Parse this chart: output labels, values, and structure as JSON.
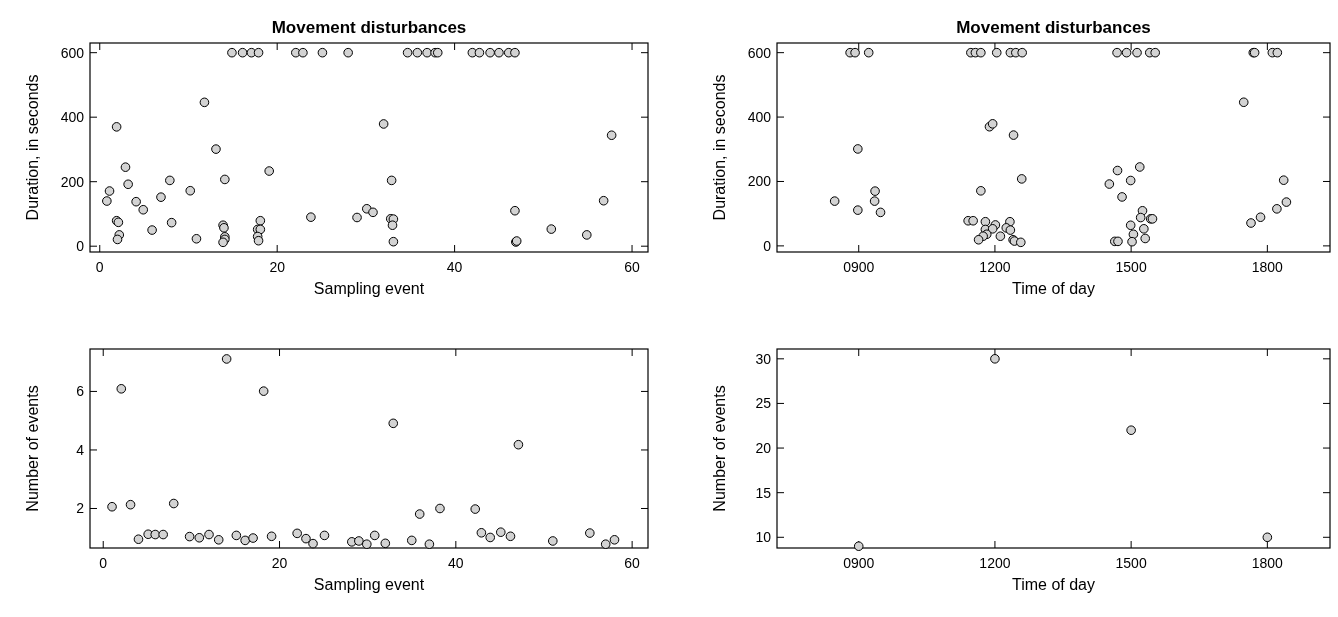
{
  "chart_data": [
    {
      "type": "scatter",
      "title": "Movement disturbances",
      "xlabel": "Sampling event",
      "ylabel": "Duration, in seconds",
      "color": "#d3d3d3",
      "marker": "circle",
      "xlim": [
        -1.1,
        61.8
      ],
      "ylim": [
        -18,
        630
      ],
      "xticks": [
        0,
        20,
        40,
        60
      ],
      "yticks": [
        0,
        200,
        400,
        600
      ],
      "x": [
        14.9,
        16.1,
        17.1,
        17.9,
        22.1,
        22.9,
        25.1,
        28.0,
        34.7,
        35.8,
        36.9,
        37.8,
        38.1,
        42.0,
        42.8,
        44.0,
        45.0,
        46.1,
        46.8,
        11.8,
        1.9,
        13.1,
        2.9,
        19.1,
        7.9,
        14.1,
        3.2,
        1.1,
        10.2,
        0.8,
        6.9,
        4.1,
        4.9,
        32.0,
        57.7,
        32.9,
        56.8,
        46.8,
        30.1,
        30.8,
        23.8,
        29.0,
        32.8,
        33.1,
        33.0,
        1.9,
        2.1,
        8.1,
        18.1,
        13.9,
        14.0,
        17.8,
        18.1,
        2.2,
        5.9,
        10.9,
        2.0,
        14.1,
        14.1,
        13.9,
        17.8,
        17.9,
        33.1,
        46.9,
        47.0,
        50.9,
        54.9
      ],
      "values": [
        600,
        600,
        600,
        600,
        600,
        600,
        600,
        600,
        600,
        600,
        600,
        600,
        600,
        600,
        600,
        600,
        600,
        600,
        600,
        446,
        370,
        301,
        245,
        233,
        204,
        207,
        192,
        171,
        172,
        140,
        152,
        138,
        113,
        379,
        344,
        204,
        141,
        110,
        116,
        105,
        90,
        89,
        85,
        84,
        65,
        79,
        74,
        73,
        79,
        65,
        57,
        52,
        52,
        35,
        50,
        23,
        21,
        29,
        21,
        12,
        30,
        17,
        14,
        13,
        16,
        53,
        35
      ]
    },
    {
      "type": "scatter",
      "title": "Movement disturbances",
      "xlabel": "Time of day",
      "ylabel": "Duration, in seconds",
      "color": "#d3d3d3",
      "marker": "circle",
      "xlim": [
        720,
        1938
      ],
      "ylim": [
        -19,
        630
      ],
      "xticks": [
        {
          "value": 900,
          "label": "0900"
        },
        1200,
        1500,
        1800
      ],
      "yticks": [
        0,
        200,
        400,
        600
      ],
      "x": [
        881,
        892,
        922,
        1147,
        1157,
        1169,
        1204,
        1234,
        1246,
        1260,
        1469,
        1490,
        1513,
        1541,
        1553,
        1769,
        1772,
        1811,
        1822,
        1748,
        1188,
        1195,
        1241,
        898,
        1259,
        1519,
        1470,
        1452,
        1499,
        1836,
        1169,
        936,
        1480,
        847,
        935,
        1842,
        898,
        948,
        1525,
        1821,
        1785,
        1764,
        1521,
        1543,
        1547,
        1141,
        1152,
        1179,
        1201,
        1233,
        1225,
        1234,
        1179,
        1195,
        1528,
        1499,
        1505,
        1182,
        1174,
        1212,
        1164,
        1240,
        1243,
        1257,
        1531,
        1464,
        1471,
        1502
      ],
      "values": [
        600,
        600,
        600,
        600,
        600,
        600,
        600,
        600,
        600,
        600,
        600,
        600,
        600,
        600,
        600,
        600,
        600,
        600,
        600,
        446,
        370,
        379,
        344,
        301,
        208,
        245,
        234,
        192,
        203,
        204,
        171,
        170,
        152,
        139,
        139,
        136,
        111,
        104,
        109,
        115,
        89,
        71,
        88,
        84,
        84,
        78,
        78,
        75,
        65,
        75,
        56,
        49,
        51,
        53,
        53,
        64,
        36,
        36,
        30,
        30,
        19,
        19,
        15,
        11,
        23,
        14,
        14,
        13
      ]
    },
    {
      "type": "scatter",
      "xlabel": "Sampling event",
      "ylabel": "Number of events",
      "color": "#d3d3d3",
      "marker": "circle",
      "xlim": [
        -1.5,
        61.8
      ],
      "ylim": [
        0.65,
        7.45
      ],
      "xticks": [
        0,
        20,
        40,
        60
      ],
      "yticks": [
        2,
        4,
        6
      ],
      "x": [
        1.0,
        2.05,
        3.1,
        4.0,
        5.1,
        5.9,
        6.8,
        8.0,
        9.8,
        10.9,
        12.0,
        13.1,
        14.0,
        15.1,
        16.1,
        17.0,
        18.2,
        19.1,
        22.0,
        23.0,
        23.8,
        25.1,
        28.2,
        29.0,
        29.9,
        30.8,
        32.0,
        32.9,
        35.0,
        35.9,
        37.0,
        38.2,
        42.2,
        42.9,
        43.9,
        45.1,
        46.2,
        47.1,
        51.0,
        55.2,
        57.0,
        58.0
      ],
      "values": [
        2.06,
        6.09,
        2.13,
        0.95,
        1.12,
        1.11,
        1.11,
        2.17,
        1.04,
        1.0,
        1.11,
        0.93,
        7.11,
        1.08,
        0.91,
        0.99,
        6.01,
        1.05,
        1.15,
        0.97,
        0.8,
        1.08,
        0.86,
        0.89,
        0.78,
        1.08,
        0.81,
        4.91,
        0.91,
        1.81,
        0.78,
        2.0,
        1.98,
        1.17,
        1.01,
        1.19,
        1.05,
        4.18,
        0.89,
        1.16,
        0.78,
        0.93
      ]
    },
    {
      "type": "scatter",
      "xlabel": "Time of day",
      "ylabel": "Number of events",
      "color": "#d3d3d3",
      "marker": "circle",
      "xlim": [
        720,
        1938
      ],
      "ylim": [
        8.8,
        31.1
      ],
      "xticks": [
        {
          "value": 900,
          "label": "0900"
        },
        1200,
        1500,
        1800
      ],
      "yticks": [
        10,
        15,
        20,
        25,
        30
      ],
      "x": [
        900,
        1200,
        1500,
        1800
      ],
      "values": [
        9,
        30,
        22,
        10
      ]
    }
  ]
}
